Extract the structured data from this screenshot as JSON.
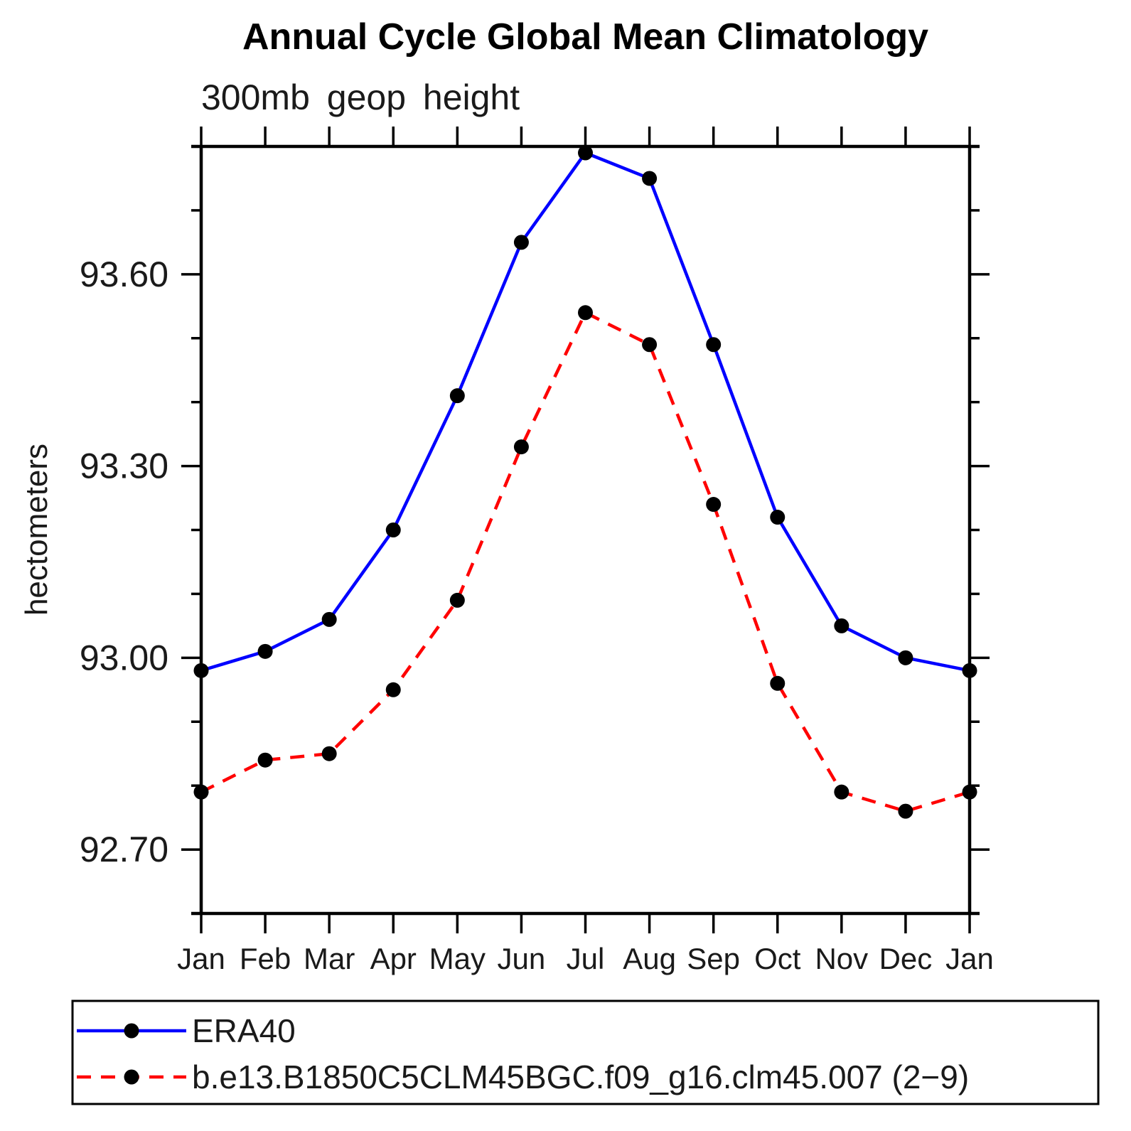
{
  "title": "Annual Cycle Global Mean Climatology",
  "subtitle": "300mb geop height",
  "ylabel": "hectometers",
  "colors": {
    "background": "#ffffff",
    "axis": "#000000",
    "marker": "#000000",
    "era40_line": "#0000ff",
    "model_line": "#ff0000"
  },
  "chart_data": {
    "type": "line",
    "title": "Annual Cycle Global Mean Climatology",
    "subtitle": "300mb geop height",
    "xlabel": "",
    "ylabel": "hectometers",
    "categories": [
      "Jan",
      "Feb",
      "Mar",
      "Apr",
      "May",
      "Jun",
      "Jul",
      "Aug",
      "Sep",
      "Oct",
      "Nov",
      "Dec",
      "Jan"
    ],
    "series": [
      {
        "name": "ERA40",
        "color": "#0000ff",
        "style": "solid",
        "marker": "circle",
        "marker_color": "#000000",
        "values": [
          92.98,
          93.01,
          93.06,
          93.2,
          93.41,
          93.65,
          93.79,
          93.75,
          93.49,
          93.22,
          93.05,
          93.0,
          92.98
        ]
      },
      {
        "name": "b.e13.B1850C5CLM45BGC.f09_g16.clm45.007 (2−9)",
        "color": "#ff0000",
        "style": "dashed",
        "marker": "circle",
        "marker_color": "#000000",
        "values": [
          92.79,
          92.84,
          92.85,
          92.95,
          93.09,
          93.33,
          93.54,
          93.49,
          93.24,
          92.96,
          92.79,
          92.76,
          92.79
        ]
      }
    ],
    "ylim": [
      92.6,
      93.8
    ],
    "yticks_major": [
      92.7,
      93.0,
      93.3,
      93.6
    ],
    "ytick_labels": [
      "92.70",
      "93.00",
      "93.30",
      "93.60"
    ],
    "yticks_minor": [
      92.8,
      92.9,
      93.1,
      93.2,
      93.4,
      93.5,
      93.7
    ],
    "grid": false,
    "legend_position": "bottom"
  }
}
